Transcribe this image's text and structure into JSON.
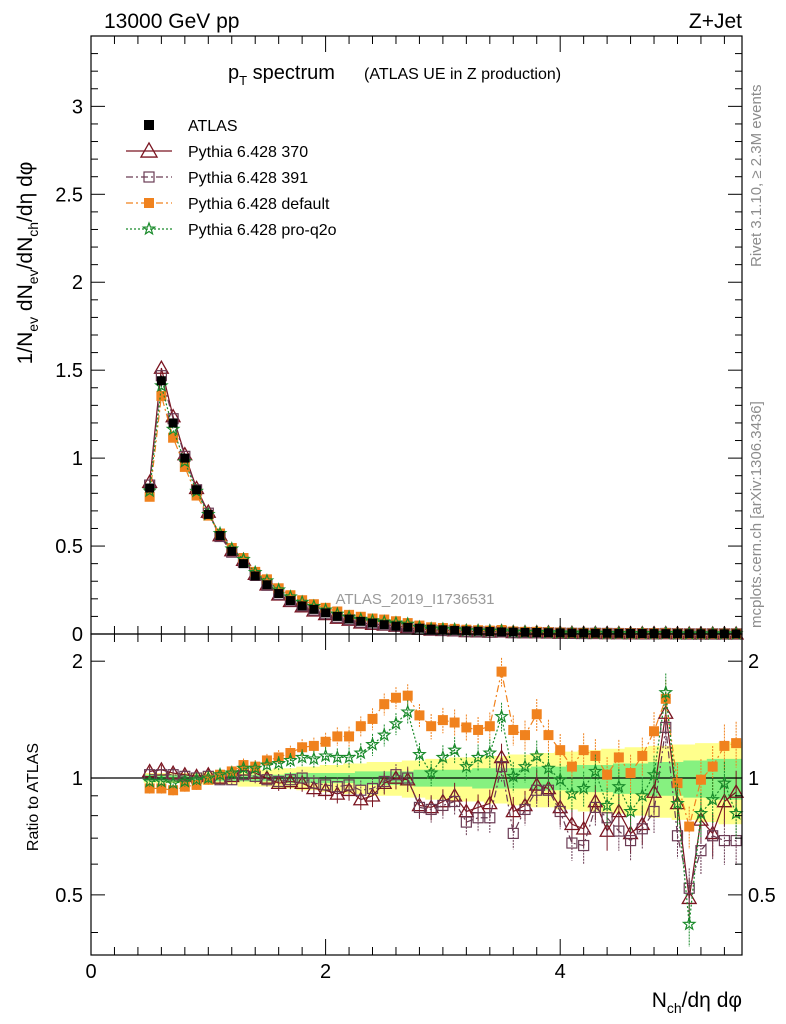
{
  "header": {
    "left": "13000 GeV pp",
    "right": "Z+Jet"
  },
  "side_labels": {
    "rivet": "Rivet 3.1.10, ≥ 2.3M events",
    "mcplots": "mcplots.cern.ch [arXiv:1306.3436]"
  },
  "watermark": "ATLAS_2019_I1736531",
  "chart_data": {
    "type": "scatter",
    "title": {
      "main": "p",
      "main_sub": "T",
      "main_rest": " spectrum",
      "detail": "(ATLAS UE in Z production)"
    },
    "xlabel": {
      "n": "N",
      "n_sub": "ch",
      "rest": "/dη dφ"
    },
    "ylabel": {
      "top": "1/N",
      "ev": "ev",
      "mid": " dN",
      "ev2": "ev",
      "slash": "/dN",
      "ch": "ch",
      "end": "/dη dφ"
    },
    "ratio_ylabel": "Ratio to ATLAS",
    "xlim": [
      0,
      5.55
    ],
    "ylim": [
      0,
      3.4
    ],
    "ratio_ylim": [
      0.35,
      2.35
    ],
    "x_ticks": [
      "0",
      "2",
      "4"
    ],
    "y_ticks": [
      "0",
      "0.5",
      "1",
      "1.5",
      "2",
      "2.5",
      "3"
    ],
    "ratio_ticks": [
      "0.5",
      "1",
      "2"
    ],
    "x": [
      0.5,
      0.6,
      0.7,
      0.8,
      0.9,
      1.0,
      1.1,
      1.2,
      1.3,
      1.4,
      1.5,
      1.6,
      1.7,
      1.8,
      1.9,
      2.0,
      2.1,
      2.2,
      2.3,
      2.4,
      2.5,
      2.6,
      2.7,
      2.8,
      2.9,
      3.0,
      3.1,
      3.2,
      3.3,
      3.4,
      3.5,
      3.6,
      3.7,
      3.8,
      3.9,
      4.0,
      4.1,
      4.2,
      4.3,
      4.4,
      4.5,
      4.6,
      4.7,
      4.8,
      4.9,
      5.0,
      5.1,
      5.2,
      5.3,
      5.4,
      5.5
    ],
    "atlas": [
      0.83,
      1.44,
      1.2,
      1.0,
      0.82,
      0.68,
      0.56,
      0.47,
      0.4,
      0.33,
      0.28,
      0.23,
      0.19,
      0.16,
      0.14,
      0.12,
      0.1,
      0.085,
      0.072,
      0.062,
      0.053,
      0.045,
      0.038,
      0.033,
      0.028,
      0.024,
      0.021,
      0.018,
      0.016,
      0.014,
      0.012,
      0.011,
      0.0095,
      0.0085,
      0.0075,
      0.0066,
      0.0058,
      0.0051,
      0.0045,
      0.004,
      0.0036,
      0.0032,
      0.0028,
      0.0025,
      0.0022,
      0.002,
      0.0018,
      0.0016,
      0.0014,
      0.0013,
      0.0012
    ],
    "band_inner": [
      0.02,
      0.02,
      0.02,
      0.02,
      0.02,
      0.02,
      0.02,
      0.02,
      0.02,
      0.02,
      0.02,
      0.02,
      0.03,
      0.03,
      0.03,
      0.03,
      0.03,
      0.03,
      0.04,
      0.04,
      0.04,
      0.04,
      0.04,
      0.05,
      0.05,
      0.05,
      0.05,
      0.05,
      0.06,
      0.06,
      0.06,
      0.06,
      0.06,
      0.07,
      0.07,
      0.07,
      0.08,
      0.08,
      0.08,
      0.08,
      0.09,
      0.09,
      0.09,
      0.1,
      0.1,
      0.1,
      0.11,
      0.11,
      0.12,
      0.12,
      0.12
    ],
    "band_outer": [
      0.03,
      0.03,
      0.03,
      0.03,
      0.03,
      0.04,
      0.04,
      0.04,
      0.05,
      0.05,
      0.05,
      0.06,
      0.06,
      0.07,
      0.07,
      0.08,
      0.08,
      0.09,
      0.09,
      0.1,
      0.1,
      0.1,
      0.11,
      0.11,
      0.12,
      0.12,
      0.13,
      0.13,
      0.13,
      0.14,
      0.14,
      0.15,
      0.15,
      0.16,
      0.16,
      0.17,
      0.17,
      0.18,
      0.18,
      0.19,
      0.19,
      0.2,
      0.2,
      0.21,
      0.21,
      0.22,
      0.22,
      0.23,
      0.23,
      0.24,
      0.24
    ],
    "series": [
      {
        "name": "ATLAS",
        "color": "#000000",
        "marker": "square-filled",
        "style": "none"
      },
      {
        "name": "Pythia 6.428 370",
        "color": "#7a1420",
        "marker": "triangle-open",
        "style": "solid",
        "ratio": [
          1.04,
          1.05,
          1.03,
          1.02,
          1.01,
          1.02,
          1.0,
          1.01,
          1.05,
          1.03,
          1.0,
          0.97,
          0.98,
          0.97,
          0.94,
          0.93,
          0.91,
          0.93,
          0.88,
          0.9,
          0.97,
          1.0,
          0.99,
          0.85,
          0.84,
          0.87,
          0.9,
          0.82,
          0.84,
          0.86,
          1.13,
          0.82,
          0.85,
          0.96,
          0.94,
          0.84,
          0.76,
          0.74,
          0.87,
          0.73,
          0.82,
          0.72,
          0.76,
          0.92,
          1.47,
          0.86,
          0.49,
          0.78,
          0.72,
          0.87,
          0.92
        ]
      },
      {
        "name": "Pythia 6.428 391",
        "color": "#6b3c55",
        "marker": "square-open",
        "style": "dashdot",
        "ratio": [
          1.02,
          1.02,
          1.02,
          1.01,
          1.0,
          1.01,
          0.99,
          0.99,
          1.02,
          1.01,
          0.99,
          0.98,
          0.99,
          1.0,
          0.97,
          0.96,
          0.95,
          0.96,
          0.93,
          0.94,
          0.98,
          1.02,
          1.0,
          0.84,
          0.83,
          0.85,
          0.87,
          0.77,
          0.79,
          0.79,
          1.07,
          0.72,
          0.83,
          0.93,
          0.93,
          0.82,
          0.68,
          0.67,
          0.84,
          0.79,
          0.73,
          0.69,
          0.74,
          0.82,
          1.35,
          0.71,
          0.52,
          0.65,
          0.71,
          0.69,
          0.69
        ]
      },
      {
        "name": "Pythia 6.428 default",
        "color": "#f0821e",
        "marker": "square-filled",
        "style": "dashdot",
        "ratio": [
          0.94,
          0.94,
          0.93,
          0.95,
          0.96,
          0.99,
          1.02,
          1.04,
          1.08,
          1.07,
          1.11,
          1.13,
          1.16,
          1.2,
          1.21,
          1.24,
          1.28,
          1.28,
          1.36,
          1.42,
          1.55,
          1.61,
          1.63,
          1.45,
          1.36,
          1.41,
          1.39,
          1.35,
          1.33,
          1.36,
          1.88,
          1.33,
          1.29,
          1.46,
          1.29,
          1.18,
          1.07,
          1.18,
          1.14,
          1.02,
          1.13,
          1.03,
          1.14,
          1.32,
          1.6,
          0.97,
          0.75,
          0.99,
          1.07,
          1.21,
          1.23
        ]
      },
      {
        "name": "Pythia 6.428 pro-q2o",
        "color": "#198a2a",
        "marker": "star",
        "style": "dotted",
        "ratio": [
          0.98,
          0.98,
          0.97,
          0.98,
          0.99,
          1.0,
          1.02,
          1.03,
          1.06,
          1.06,
          1.08,
          1.09,
          1.11,
          1.13,
          1.12,
          1.14,
          1.13,
          1.13,
          1.16,
          1.22,
          1.29,
          1.38,
          1.48,
          1.15,
          1.03,
          1.13,
          1.18,
          1.07,
          1.13,
          1.16,
          1.44,
          1.01,
          1.07,
          1.14,
          1.06,
          0.99,
          0.91,
          0.94,
          1.04,
          0.85,
          0.95,
          0.82,
          0.9,
          1.02,
          1.66,
          0.86,
          0.42,
          0.81,
          0.88,
          0.97,
          0.81
        ]
      }
    ]
  }
}
